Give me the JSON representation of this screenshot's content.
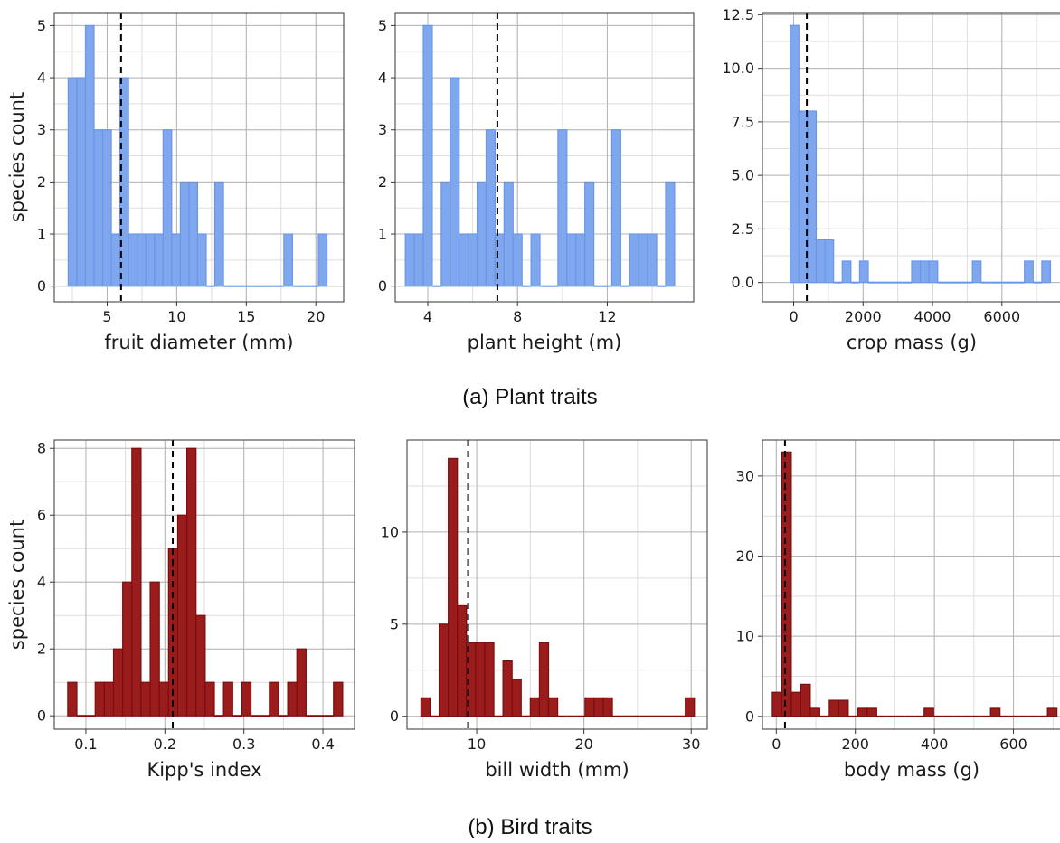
{
  "figure": {
    "caption_a": "(a) Plant traits",
    "caption_b": "(b) Bird traits",
    "colors": {
      "plant_fill": "#7FA7EE",
      "plant_edge": "#6B96E8",
      "bird_fill": "#9B1C1C",
      "bird_edge": "#7A0E0E"
    }
  },
  "chart_data": [
    {
      "type": "bar",
      "group": "plant",
      "xlabel": "fruit diameter (mm)",
      "ylabel": "species count",
      "xlim": [
        1.2,
        22
      ],
      "ylim": [
        -0.3,
        5.25
      ],
      "xticks": [
        5,
        10,
        15,
        20
      ],
      "yticks": [
        0,
        1,
        2,
        3,
        4,
        5
      ],
      "ytick_labels": [
        "0",
        "1",
        "2",
        "3",
        "4",
        "5"
      ],
      "bin_width": 0.62,
      "bin_starts": [
        2.2,
        2.82,
        3.44,
        4.06,
        4.68,
        5.3,
        5.92,
        6.54,
        7.16,
        7.78,
        8.4,
        9.02,
        9.64,
        10.26,
        10.88,
        11.5,
        12.12,
        12.74,
        13.36,
        13.98,
        14.6,
        15.22,
        15.84,
        16.46,
        17.08,
        17.7,
        18.32,
        18.94,
        19.56,
        20.18
      ],
      "counts": [
        4,
        4,
        5,
        3,
        3,
        1,
        4,
        1,
        1,
        1,
        1,
        3,
        1,
        2,
        2,
        1,
        0,
        2,
        0,
        0,
        0,
        0,
        0,
        0,
        0,
        1,
        0,
        0,
        0,
        1
      ],
      "mean": 6.0
    },
    {
      "type": "bar",
      "group": "plant",
      "xlabel": "plant height (m)",
      "ylabel": "",
      "xlim": [
        2.55,
        15.85
      ],
      "ylim": [
        -0.3,
        5.25
      ],
      "xticks": [
        4,
        8,
        12
      ],
      "yticks": [
        0,
        1,
        2,
        3,
        4,
        5
      ],
      "ytick_labels": [
        "0",
        "1",
        "2",
        "3",
        "4",
        "5"
      ],
      "bin_width": 0.4,
      "bin_starts": [
        3.0,
        3.4,
        3.8,
        4.2,
        4.6,
        5.0,
        5.4,
        5.8,
        6.2,
        6.6,
        7.0,
        7.4,
        7.8,
        8.2,
        8.6,
        9.0,
        9.4,
        9.8,
        10.2,
        10.6,
        11.0,
        11.4,
        11.8,
        12.2,
        12.6,
        13.0,
        13.4,
        13.8,
        14.2,
        14.6
      ],
      "counts": [
        1,
        1,
        5,
        0,
        2,
        4,
        1,
        1,
        2,
        3,
        1,
        2,
        1,
        0,
        1,
        0,
        0,
        3,
        1,
        1,
        2,
        0,
        0,
        3,
        0,
        1,
        1,
        1,
        0,
        2
      ],
      "mean": 7.1
    },
    {
      "type": "bar",
      "group": "plant",
      "xlabel": "crop mass (g)",
      "ylabel": "",
      "xlim": [
        -900,
        7700
      ],
      "ylim": [
        -0.9,
        12.6
      ],
      "xticks": [
        0,
        2000,
        4000,
        6000
      ],
      "yticks": [
        0,
        2.5,
        5,
        7.5,
        10,
        12.5
      ],
      "ytick_labels": [
        "0.0",
        "2.5",
        "5.0",
        "7.5",
        "10.0",
        "12.5"
      ],
      "bin_width": 250,
      "bin_starts": [
        -100,
        150,
        400,
        650,
        900,
        1150,
        1400,
        1650,
        1900,
        2150,
        2400,
        2650,
        2900,
        3150,
        3400,
        3650,
        3900,
        4150,
        4400,
        4650,
        4900,
        5150,
        5400,
        5650,
        5900,
        6150,
        6400,
        6650,
        6900,
        7150
      ],
      "counts": [
        12,
        8,
        8,
        2,
        2,
        0,
        1,
        0,
        1,
        0,
        0,
        0,
        0,
        0,
        1,
        1,
        1,
        0,
        0,
        0,
        0,
        1,
        0,
        0,
        0,
        0,
        0,
        1,
        0,
        1
      ],
      "mean": 380
    },
    {
      "type": "bar",
      "group": "bird",
      "xlabel": "Kipp's index",
      "ylabel": "species count",
      "xlim": [
        0.06,
        0.44
      ],
      "ylim": [
        -0.4,
        8.25
      ],
      "xticks": [
        0.1,
        0.2,
        0.3,
        0.4
      ],
      "xtick_labels": [
        "0.1",
        "0.2",
        "0.3",
        "0.4"
      ],
      "yticks": [
        0,
        2,
        4,
        6,
        8
      ],
      "ytick_labels": [
        "0",
        "2",
        "4",
        "6",
        "8"
      ],
      "bin_width": 0.0116,
      "bin_starts": [
        0.077,
        0.0886,
        0.1002,
        0.1118,
        0.1234,
        0.135,
        0.1466,
        0.1582,
        0.1698,
        0.1814,
        0.193,
        0.2046,
        0.2162,
        0.2278,
        0.2394,
        0.251,
        0.2626,
        0.2742,
        0.2858,
        0.2974,
        0.309,
        0.3206,
        0.3322,
        0.3438,
        0.3554,
        0.367,
        0.3786,
        0.3902,
        0.4018,
        0.4134
      ],
      "counts": [
        1,
        0,
        0,
        1,
        1,
        2,
        4,
        8,
        1,
        4,
        1,
        5,
        6,
        8,
        3,
        1,
        0,
        1,
        0,
        1,
        0,
        0,
        1,
        0,
        1,
        2,
        0,
        0,
        0,
        1
      ],
      "mean": 0.21
    },
    {
      "type": "bar",
      "group": "bird",
      "xlabel": "bill width (mm)",
      "ylabel": "",
      "xlim": [
        3.5,
        31.5
      ],
      "ylim": [
        -0.7,
        15.0
      ],
      "xticks": [
        10,
        20,
        30
      ],
      "yticks": [
        0,
        5,
        10
      ],
      "ytick_labels": [
        "0",
        "5",
        "10"
      ],
      "bin_width": 0.85,
      "bin_starts": [
        4.8,
        5.65,
        6.5,
        7.35,
        8.2,
        9.05,
        9.9,
        10.75,
        11.6,
        12.45,
        13.3,
        14.15,
        15.0,
        15.85,
        16.7,
        17.55,
        18.4,
        19.25,
        20.1,
        20.95,
        21.8,
        22.65,
        23.5,
        24.35,
        25.2,
        26.05,
        26.9,
        27.75,
        28.6,
        29.45
      ],
      "counts": [
        1,
        0,
        5,
        14,
        6,
        4,
        4,
        4,
        0,
        3,
        2,
        0,
        1,
        4,
        1,
        0,
        0,
        0,
        1,
        1,
        1,
        0,
        0,
        0,
        0,
        0,
        0,
        0,
        0,
        1
      ],
      "mean": 9.2
    },
    {
      "type": "bar",
      "group": "bird",
      "xlabel": "body mass (g)",
      "ylabel": "",
      "xlim": [
        -35,
        720
      ],
      "ylim": [
        -1.6,
        34.5
      ],
      "xticks": [
        0,
        200,
        400,
        600
      ],
      "yticks": [
        0,
        10,
        20,
        30
      ],
      "ytick_labels": [
        "0",
        "10",
        "20",
        "30"
      ],
      "bin_width": 24,
      "bin_starts": [
        -10,
        14,
        38,
        62,
        86,
        110,
        134,
        158,
        182,
        206,
        230,
        254,
        278,
        302,
        326,
        350,
        374,
        398,
        422,
        446,
        470,
        494,
        518,
        542,
        566,
        590,
        614,
        638,
        662,
        686
      ],
      "counts": [
        3,
        33,
        3,
        4,
        1,
        0,
        2,
        2,
        0,
        1,
        1,
        0,
        0,
        0,
        0,
        0,
        1,
        0,
        0,
        0,
        0,
        0,
        0,
        1,
        0,
        0,
        0,
        0,
        0,
        1
      ],
      "mean": 22
    }
  ]
}
